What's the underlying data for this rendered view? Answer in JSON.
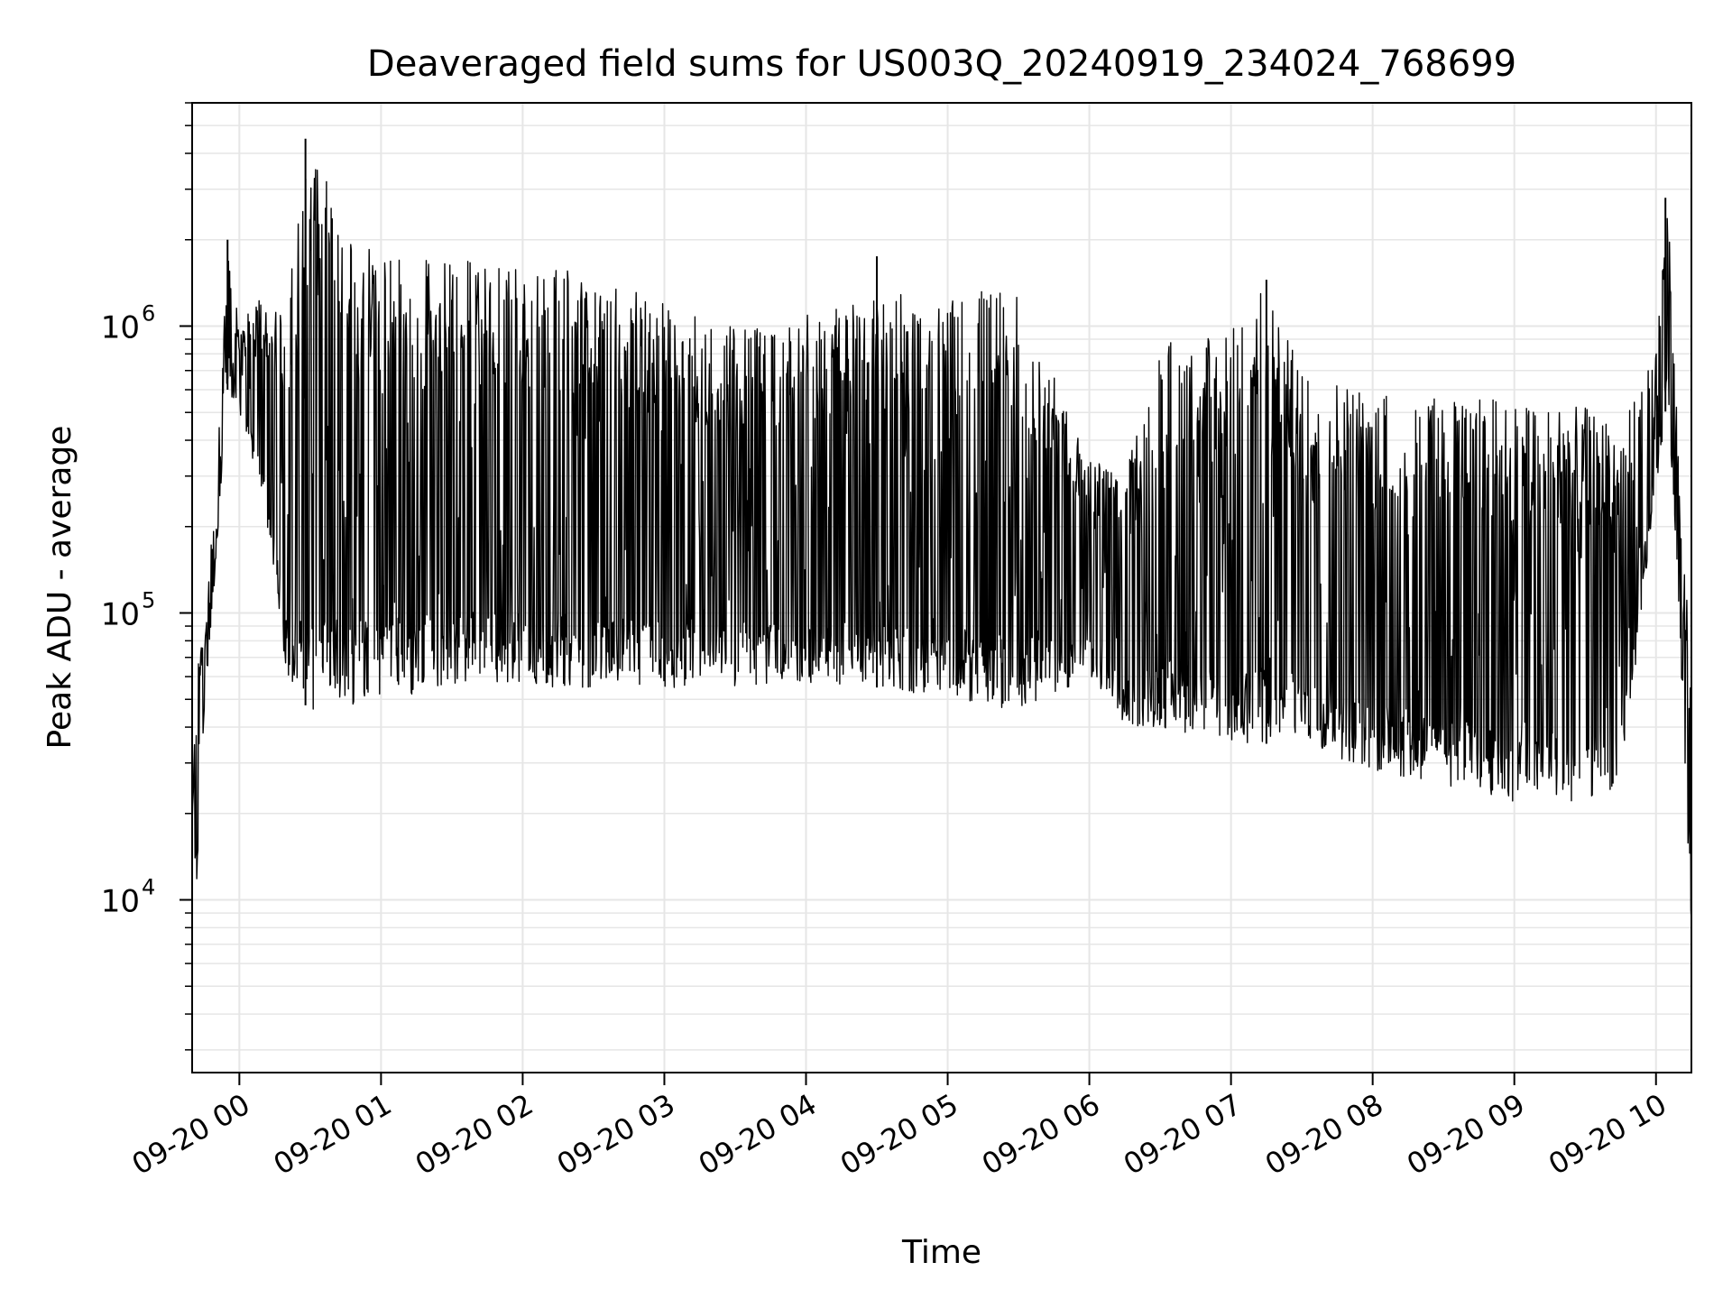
{
  "chart_data": {
    "type": "line",
    "title": "Deaveraged field sums for US003Q_20240919_234024_768699",
    "xlabel": "Time",
    "ylabel": "Peak ADU - average",
    "yscale": "log",
    "xlim": [
      "09-19 23:40",
      "09-20 10:15"
    ],
    "ylim": [
      2500,
      6000000
    ],
    "grid": true,
    "legend": "none",
    "line_color": "#000000",
    "grid_color": "#e6e6e6",
    "x_ticks": [
      {
        "t": "09-20 00:00",
        "label": "09-20 00"
      },
      {
        "t": "09-20 01:00",
        "label": "09-20 01"
      },
      {
        "t": "09-20 02:00",
        "label": "09-20 02"
      },
      {
        "t": "09-20 03:00",
        "label": "09-20 03"
      },
      {
        "t": "09-20 04:00",
        "label": "09-20 04"
      },
      {
        "t": "09-20 05:00",
        "label": "09-20 05"
      },
      {
        "t": "09-20 06:00",
        "label": "09-20 06"
      },
      {
        "t": "09-20 07:00",
        "label": "09-20 07"
      },
      {
        "t": "09-20 08:00",
        "label": "09-20 08"
      },
      {
        "t": "09-20 09:00",
        "label": "09-20 09"
      },
      {
        "t": "09-20 10:00",
        "label": "09-20 10"
      }
    ],
    "y_ticks": [
      {
        "value": 10000,
        "base": "10",
        "exp": "4"
      },
      {
        "value": 100000,
        "base": "10",
        "exp": "5"
      },
      {
        "value": 1000000,
        "base": "10",
        "exp": "6"
      }
    ],
    "envelope": [
      {
        "t": "09-19 23:40",
        "low": 18000,
        "high": 20000
      },
      {
        "t": "09-19 23:42",
        "low": 10000,
        "high": 75000
      },
      {
        "t": "09-19 23:45",
        "low": 40000,
        "high": 80000
      },
      {
        "t": "09-19 23:50",
        "low": 150000,
        "high": 300000
      },
      {
        "t": "09-19 23:55",
        "low": 600000,
        "high": 2000000
      },
      {
        "t": "09-20 00:00",
        "low": 500000,
        "high": 1000000
      },
      {
        "t": "09-20 00:10",
        "low": 250000,
        "high": 1300000
      },
      {
        "t": "09-20 00:20",
        "low": 60000,
        "high": 1300000
      },
      {
        "t": "09-20 00:30",
        "low": 45000,
        "high": 4500000
      },
      {
        "t": "09-20 01:00",
        "low": 50000,
        "high": 1700000
      },
      {
        "t": "09-20 01:30",
        "low": 55000,
        "high": 1700000
      },
      {
        "t": "09-20 02:00",
        "low": 55000,
        "high": 1700000
      },
      {
        "t": "09-20 02:30",
        "low": 55000,
        "high": 1500000
      },
      {
        "t": "09-20 03:00",
        "low": 55000,
        "high": 1200000
      },
      {
        "t": "09-20 03:30",
        "low": 55000,
        "high": 1000000
      },
      {
        "t": "09-20 04:00",
        "low": 55000,
        "high": 1100000
      },
      {
        "t": "09-20 04:30",
        "low": 55000,
        "high": 1300000
      },
      {
        "t": "09-20 05:00",
        "low": 50000,
        "high": 1300000
      },
      {
        "t": "09-20 05:30",
        "low": 45000,
        "high": 1350000
      },
      {
        "t": "09-20 06:00",
        "low": 60000,
        "high": 350000
      },
      {
        "t": "09-20 06:15",
        "low": 40000,
        "high": 300000
      },
      {
        "t": "09-20 06:30",
        "low": 40000,
        "high": 900000
      },
      {
        "t": "09-20 07:00",
        "low": 35000,
        "high": 1000000
      },
      {
        "t": "09-20 07:15",
        "low": 35000,
        "high": 1400000
      },
      {
        "t": "09-20 07:30",
        "low": 35000,
        "high": 700000
      },
      {
        "t": "09-20 08:00",
        "low": 28000,
        "high": 600000
      },
      {
        "t": "09-20 08:30",
        "low": 25000,
        "high": 580000
      },
      {
        "t": "09-20 09:00",
        "low": 22000,
        "high": 550000
      },
      {
        "t": "09-20 09:30",
        "low": 22000,
        "high": 520000
      },
      {
        "t": "09-20 09:45",
        "low": 25000,
        "high": 450000
      },
      {
        "t": "09-20 10:00",
        "low": 250000,
        "high": 800000
      },
      {
        "t": "09-20 10:05",
        "low": 600000,
        "high": 2800000
      },
      {
        "t": "09-20 10:10",
        "low": 90000,
        "high": 300000
      },
      {
        "t": "09-20 10:15",
        "low": 7000,
        "high": 60000
      }
    ],
    "spikes": [
      {
        "t": "09-20 00:28",
        "value": 4500000
      },
      {
        "t": "09-20 10:04",
        "value": 2800000
      },
      {
        "t": "09-19 23:55",
        "value": 2000000
      },
      {
        "t": "09-20 04:30",
        "value": 1750000
      },
      {
        "t": "09-20 07:15",
        "value": 1450000
      }
    ]
  }
}
